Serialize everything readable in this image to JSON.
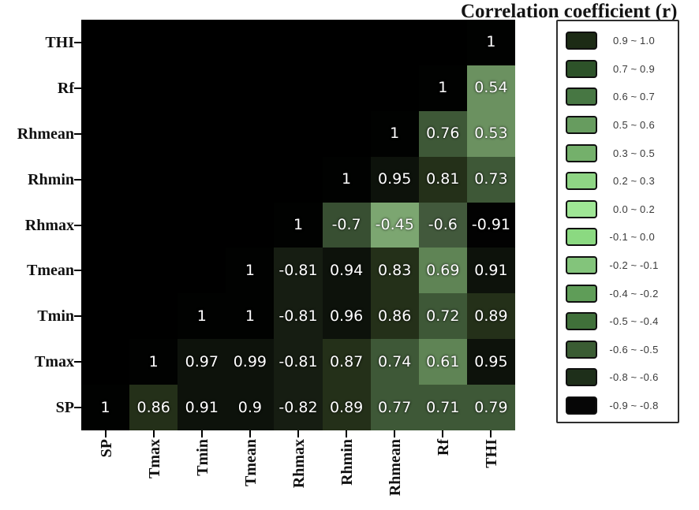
{
  "chart_data": {
    "type": "heatmap",
    "title": "Correlation coefficient (r)",
    "x_labels": [
      "SP",
      "Tmax",
      "Tmin",
      "Tmean",
      "Rhmax",
      "Rhmin",
      "Rhmean",
      "Rf",
      "THI"
    ],
    "y_labels_top_to_bottom": [
      "THI",
      "Rf",
      "Rhmean",
      "Rhmin",
      "Rhmax",
      "Tmean",
      "Tmin",
      "Tmax",
      "SP"
    ],
    "matrix_rows_top_to_bottom": [
      [
        null,
        null,
        null,
        null,
        null,
        null,
        null,
        null,
        1
      ],
      [
        null,
        null,
        null,
        null,
        null,
        null,
        null,
        1,
        0.54
      ],
      [
        null,
        null,
        null,
        null,
        null,
        null,
        1,
        0.76,
        0.53
      ],
      [
        null,
        null,
        null,
        null,
        null,
        1,
        0.95,
        0.81,
        0.73
      ],
      [
        null,
        null,
        null,
        null,
        1,
        -0.7,
        -0.45,
        -0.6,
        -0.91
      ],
      [
        null,
        null,
        null,
        1,
        -0.81,
        0.94,
        0.83,
        0.69,
        0.91
      ],
      [
        null,
        null,
        1,
        1,
        -0.81,
        0.96,
        0.86,
        0.72,
        0.89
      ],
      [
        null,
        1,
        0.97,
        0.99,
        -0.81,
        0.87,
        0.74,
        0.61,
        0.95
      ],
      [
        1,
        0.86,
        0.91,
        0.9,
        -0.82,
        0.89,
        0.77,
        0.71,
        0.79
      ]
    ],
    "plot_background": "#000000",
    "cell_text_color": "#ffffff",
    "grid": false,
    "cell_color_scale": [
      {
        "min": 0.995,
        "max": 1.01,
        "color": "#010201"
      },
      {
        "min": 0.9,
        "max": 0.995,
        "color": "#0d120b"
      },
      {
        "min": 0.8,
        "max": 0.9,
        "color": "#243019"
      },
      {
        "min": 0.7,
        "max": 0.8,
        "color": "#3e5837"
      },
      {
        "min": 0.6,
        "max": 0.7,
        "color": "#5f8455"
      },
      {
        "min": 0.5,
        "max": 0.6,
        "color": "#6b9160"
      },
      {
        "min": 0.3,
        "max": 0.5,
        "color": "#74b06b"
      },
      {
        "min": 0.2,
        "max": 0.3,
        "color": "#8ed584"
      },
      {
        "min": 0.0,
        "max": 0.2,
        "color": "#9fe695"
      },
      {
        "min": -0.1,
        "max": 0.0,
        "color": "#8bd981"
      },
      {
        "min": -0.2,
        "max": -0.1,
        "color": "#83c47b"
      },
      {
        "min": -0.4,
        "max": -0.2,
        "color": "#5f9d58"
      },
      {
        "min": -0.5,
        "max": -0.4,
        "color": "#7ca671"
      },
      {
        "min": -0.62,
        "max": -0.5,
        "color": "#42593c"
      },
      {
        "min": -0.78,
        "max": -0.62,
        "color": "#384f32"
      },
      {
        "min": -0.88,
        "max": -0.78,
        "color": "#161d12"
      },
      {
        "min": -1.01,
        "max": -0.88,
        "color": "#020202"
      }
    ],
    "legend": {
      "position": "right",
      "separator": "~",
      "entries": [
        {
          "lo": "0.9",
          "hi": "1.0",
          "color": "#1c2b15"
        },
        {
          "lo": "0.7",
          "hi": "0.9",
          "color": "#2d5229"
        },
        {
          "lo": "0.6",
          "hi": "0.7",
          "color": "#477743"
        },
        {
          "lo": "0.5",
          "hi": "0.6",
          "color": "#679c5f"
        },
        {
          "lo": "0.3",
          "hi": "0.5",
          "color": "#74b06b"
        },
        {
          "lo": "0.2",
          "hi": "0.3",
          "color": "#8ed584"
        },
        {
          "lo": "0.0",
          "hi": "0.2",
          "color": "#9fe695"
        },
        {
          "lo": "-0.1",
          "hi": "0.0",
          "color": "#8bd981"
        },
        {
          "lo": "-0.2",
          "hi": "-0.1",
          "color": "#83c47b"
        },
        {
          "lo": "-0.4",
          "hi": "-0.2",
          "color": "#5f9d58"
        },
        {
          "lo": "-0.5",
          "hi": "-0.4",
          "color": "#40703a"
        },
        {
          "lo": "-0.6",
          "hi": "-0.5",
          "color": "#3a5c33"
        },
        {
          "lo": "-0.8",
          "hi": "-0.6",
          "color": "#1e2f1a"
        },
        {
          "lo": "-0.9",
          "hi": "-0.8",
          "color": "#060606"
        }
      ]
    }
  }
}
